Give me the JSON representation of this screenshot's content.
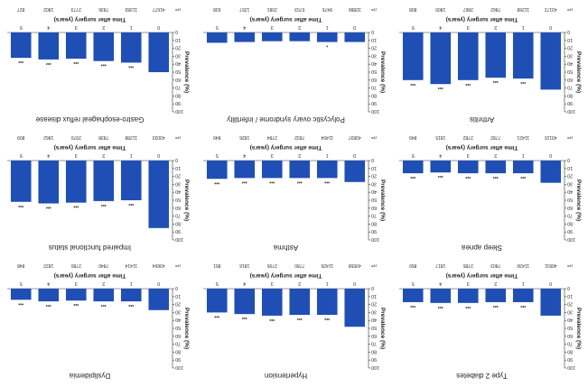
{
  "figure": {
    "bar_color": "#1f4fb4",
    "axis_color": "#333333",
    "text_color": "#222222",
    "background": "#ffffff"
  },
  "chart_data": [
    {
      "type": "bar",
      "title": "Type 2 diabetes",
      "xlabel": "Time after surgery (years)",
      "ylabel": "Prevalence (%)",
      "ylim": [
        0,
        100
      ],
      "yticks": [
        "0",
        "10",
        "20",
        "30",
        "40",
        "50",
        "60",
        "70",
        "80",
        "90",
        "100"
      ],
      "categories": [
        "0",
        "1",
        "2",
        "3",
        "4",
        "5"
      ],
      "values": [
        34,
        17,
        17,
        18,
        18,
        17
      ],
      "significance": [
        "",
        "***",
        "***",
        "***",
        "***",
        "***"
      ],
      "n_label": "n=",
      "n": [
        "40811",
        "11430",
        "7803",
        "2785",
        "1817",
        "850"
      ]
    },
    {
      "type": "bar",
      "title": "Hypertension",
      "xlabel": "Time after surgery (years)",
      "ylabel": "Prevalence (%)",
      "ylim": [
        0,
        100
      ],
      "yticks": [
        "0",
        "10",
        "20",
        "30",
        "40",
        "50",
        "60",
        "70",
        "80",
        "90",
        "100"
      ],
      "categories": [
        "0",
        "1",
        "2",
        "3",
        "4",
        "5"
      ],
      "values": [
        48,
        33,
        33,
        34,
        32,
        30
      ],
      "significance": [
        "",
        "***",
        "***",
        "***",
        "***",
        "***"
      ],
      "n_label": "n=",
      "n": [
        "43558",
        "11425",
        "7780",
        "2795",
        "1816",
        "851"
      ]
    },
    {
      "type": "bar",
      "title": "Dyslipidemia",
      "xlabel": "Time after surgery (years)",
      "ylabel": "Prevalence (%)",
      "ylim": [
        0,
        100
      ],
      "yticks": [
        "0",
        "10",
        "20",
        "30",
        "40",
        "50",
        "60",
        "70",
        "80",
        "90",
        "100"
      ],
      "categories": [
        "0",
        "1",
        "2",
        "3",
        "4",
        "5"
      ],
      "values": [
        27,
        16,
        16,
        15,
        16,
        14
      ],
      "significance": [
        "",
        "***",
        "***",
        "***",
        "***",
        "***"
      ],
      "n_label": "n=",
      "n": [
        "43654",
        "11414",
        "7840",
        "2780",
        "1822",
        "848"
      ]
    },
    {
      "type": "bar",
      "title": "Sleep apnea",
      "xlabel": "Time after surgery (years)",
      "ylabel": "Prevalence (%)",
      "ylim": [
        0,
        100
      ],
      "yticks": [
        "0",
        "10",
        "20",
        "30",
        "40",
        "50",
        "60",
        "70",
        "80",
        "90",
        "100"
      ],
      "categories": [
        "0",
        "1",
        "2",
        "3",
        "4",
        "5"
      ],
      "values": [
        28,
        16,
        16,
        16,
        15,
        16
      ],
      "significance": [
        "",
        "***",
        "***",
        "***",
        "***",
        "***"
      ],
      "n_label": "n=",
      "n": [
        "43115",
        "11421",
        "7782",
        "2782",
        "1815",
        "849"
      ]
    },
    {
      "type": "bar",
      "title": "Asthma",
      "xlabel": "Time after surgery (years)",
      "ylabel": "Prevalence (%)",
      "ylim": [
        0,
        100
      ],
      "yticks": [
        "0",
        "10",
        "20",
        "30",
        "40",
        "50",
        "60",
        "70",
        "80",
        "90",
        "100"
      ],
      "categories": [
        "0",
        "1",
        "2",
        "3",
        "4",
        "5"
      ],
      "values": [
        27,
        22,
        22,
        22,
        22,
        23
      ],
      "significance": [
        "",
        "***",
        "***",
        "***",
        "***",
        "***"
      ],
      "n_label": "n=",
      "n": [
        "43837",
        "11454",
        "7832",
        "2784",
        "1826",
        "849"
      ]
    },
    {
      "type": "bar",
      "title": "Impaired functional status",
      "xlabel": "Time after surgery (years)",
      "ylabel": "Prevalence (%)",
      "ylim": [
        0,
        100
      ],
      "yticks": [
        "0",
        "10",
        "20",
        "30",
        "40",
        "50",
        "60",
        "70",
        "80",
        "90",
        "100"
      ],
      "categories": [
        "0",
        "1",
        "2",
        "3",
        "4",
        "5"
      ],
      "values": [
        85,
        50,
        51,
        53,
        54,
        52
      ],
      "significance": [
        "",
        "***",
        "***",
        "***",
        "***",
        "***"
      ],
      "n_label": "n=",
      "n": [
        "43033",
        "11288",
        "7838",
        "2970",
        "1862",
        "809"
      ]
    },
    {
      "type": "bar",
      "title": "Arthritis",
      "xlabel": "Time after surgery (years)",
      "ylabel": "Prevalence (%)",
      "ylim": [
        0,
        100
      ],
      "yticks": [
        "0",
        "10",
        "20",
        "30",
        "40",
        "50",
        "60",
        "70",
        "80",
        "90",
        "100"
      ],
      "categories": [
        "0",
        "1",
        "2",
        "3",
        "4",
        "5"
      ],
      "values": [
        72,
        58,
        57,
        60,
        65,
        60
      ],
      "significance": [
        "",
        "***",
        "***",
        "***",
        "***",
        "***"
      ],
      "n_label": "n=",
      "n": [
        "43172",
        "11268",
        "7862",
        "2867",
        "1800",
        "808"
      ]
    },
    {
      "type": "bar",
      "title": "Polycystic ovary syndrome / infertility",
      "xlabel": "Time after surgery (years)",
      "ylabel": "Prevalence (%)",
      "ylim": [
        0,
        100
      ],
      "yticks": [
        "0",
        "10",
        "20",
        "30",
        "40",
        "50",
        "60",
        "70",
        "80",
        "90",
        "100"
      ],
      "categories": [
        "0",
        "1",
        "2",
        "3",
        "4",
        "5"
      ],
      "values": [
        12,
        12,
        11,
        11,
        12,
        13
      ],
      "significance": [
        "",
        "*",
        "",
        "",
        "",
        ""
      ],
      "n_label": "n=",
      "n": [
        "32886",
        "8475",
        "5703",
        "2081",
        "1257",
        "638"
      ]
    },
    {
      "type": "bar",
      "title": "Gastro-esophageal reflux disease",
      "xlabel": "Time after surgery (years)",
      "ylabel": "Prevalence (%)",
      "ylim": [
        0,
        100
      ],
      "yticks": [
        "0",
        "10",
        "20",
        "30",
        "40",
        "50",
        "60",
        "70",
        "80",
        "90",
        "100"
      ],
      "categories": [
        "0",
        "1",
        "2",
        "3",
        "4",
        "5"
      ],
      "values": [
        50,
        38,
        36,
        33,
        34,
        32
      ],
      "significance": [
        "",
        "***",
        "***",
        "***",
        "***",
        "***"
      ],
      "n_label": "n=",
      "n": [
        "41677",
        "11383",
        "7836",
        "2773",
        "1802",
        "827"
      ]
    }
  ]
}
